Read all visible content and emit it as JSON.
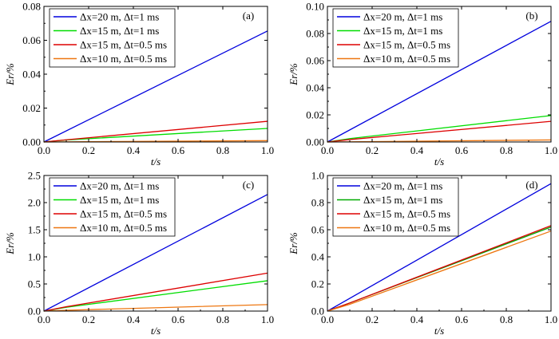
{
  "chart_data": [
    {
      "type": "line",
      "panel_label": "(a)",
      "xlabel": "t/s",
      "ylabel": "Er/%",
      "xlim": [
        0,
        1.0
      ],
      "ylim": [
        0,
        0.08
      ],
      "xticks": [
        "0.0",
        "0.2",
        "0.4",
        "0.6",
        "0.8",
        "1.0"
      ],
      "yticks": [
        "0.00",
        "0.02",
        "0.04",
        "0.06",
        "0.08"
      ],
      "legend_position": "top-left",
      "series": [
        {
          "name": "Δx=20 m, Δt=1 ms",
          "color": "#0000dd",
          "x": [
            0,
            1.0
          ],
          "y": [
            0,
            0.0655
          ]
        },
        {
          "name": "Δx=15 m, Δt=1 ms",
          "color": "#00dd00",
          "x": [
            0,
            0.1,
            1.0
          ],
          "y": [
            0,
            0.0012,
            0.008
          ]
        },
        {
          "name": "Δx=15 m, Δt=0.5 ms",
          "color": "#dd0000",
          "x": [
            0,
            0.1,
            1.0
          ],
          "y": [
            0,
            0.0013,
            0.0122
          ]
        },
        {
          "name": "Δx=10 m, Δt=0.5 ms",
          "color": "#ee7711",
          "x": [
            0,
            1.0
          ],
          "y": [
            0,
            0.0008
          ]
        }
      ]
    },
    {
      "type": "line",
      "panel_label": "(b)",
      "xlabel": "t/s",
      "ylabel": "Er/%",
      "xlim": [
        0,
        1.0
      ],
      "ylim": [
        0,
        0.1
      ],
      "xticks": [
        "0.0",
        "0.2",
        "0.4",
        "0.6",
        "0.8",
        "1.0"
      ],
      "yticks": [
        "0.00",
        "0.02",
        "0.04",
        "0.06",
        "0.08",
        "0.10"
      ],
      "legend_position": "top-left",
      "series": [
        {
          "name": "Δx=20 m, Δt=1 ms",
          "color": "#0000dd",
          "x": [
            0,
            1.0
          ],
          "y": [
            0,
            0.089
          ]
        },
        {
          "name": "Δx=15 m, Δt=1 ms",
          "color": "#00dd00",
          "x": [
            0,
            0.1,
            1.0
          ],
          "y": [
            0,
            0.0025,
            0.0195
          ]
        },
        {
          "name": "Δx=15 m, Δt=0.5 ms",
          "color": "#dd0000",
          "x": [
            0,
            0.1,
            1.0
          ],
          "y": [
            0,
            0.0018,
            0.0152
          ]
        },
        {
          "name": "Δx=10 m, Δt=0.5 ms",
          "color": "#ee7711",
          "x": [
            0,
            1.0
          ],
          "y": [
            0,
            0.0015
          ]
        }
      ]
    },
    {
      "type": "line",
      "panel_label": "(c)",
      "xlabel": "t/s",
      "ylabel": "Er/%",
      "xlim": [
        0,
        1.0
      ],
      "ylim": [
        0,
        2.5
      ],
      "xticks": [
        "0.0",
        "0.2",
        "0.4",
        "0.6",
        "0.8",
        "1.0"
      ],
      "yticks": [
        "0.0",
        "0.5",
        "1.0",
        "1.5",
        "2.0",
        "2.5"
      ],
      "legend_position": "top-left",
      "series": [
        {
          "name": "Δx=20 m, Δt=1 ms",
          "color": "#0000dd",
          "x": [
            0,
            1.0
          ],
          "y": [
            0,
            2.15
          ]
        },
        {
          "name": "Δx=15 m, Δt=1 ms",
          "color": "#00dd00",
          "x": [
            0,
            0.1,
            1.0
          ],
          "y": [
            0,
            0.07,
            0.56
          ]
        },
        {
          "name": "Δx=15 m, Δt=0.5 ms",
          "color": "#dd0000",
          "x": [
            0,
            0.1,
            1.0
          ],
          "y": [
            0,
            0.08,
            0.7
          ]
        },
        {
          "name": "Δx=10 m, Δt=0.5 ms",
          "color": "#ee7711",
          "x": [
            0,
            0.1,
            1.0
          ],
          "y": [
            0,
            0.015,
            0.12
          ]
        }
      ]
    },
    {
      "type": "line",
      "panel_label": "(d)",
      "xlabel": "t/s",
      "ylabel": "Er/%",
      "xlim": [
        0,
        1.0
      ],
      "ylim": [
        0,
        1.0
      ],
      "xticks": [
        "0.0",
        "0.2",
        "0.4",
        "0.6",
        "0.8",
        "1.0"
      ],
      "yticks": [
        "0.0",
        "0.2",
        "0.4",
        "0.6",
        "0.8",
        "1.0"
      ],
      "legend_position": "top-left",
      "series": [
        {
          "name": "Δx=20 m, Δt=1 ms",
          "color": "#0000dd",
          "x": [
            0,
            1.0
          ],
          "y": [
            0,
            0.94
          ]
        },
        {
          "name": "Δx=15 m, Δt=1 ms",
          "color": "#00aa00",
          "x": [
            0,
            0.1,
            1.0
          ],
          "y": [
            0,
            0.06,
            0.62
          ]
        },
        {
          "name": "Δx=15 m, Δt=0.5 ms",
          "color": "#dd0000",
          "x": [
            0,
            0.1,
            1.0
          ],
          "y": [
            0,
            0.06,
            0.63
          ]
        },
        {
          "name": "Δx=10 m, Δt=0.5 ms",
          "color": "#ee7711",
          "x": [
            0,
            0.1,
            1.0
          ],
          "y": [
            0,
            0.05,
            0.59
          ]
        }
      ]
    }
  ]
}
